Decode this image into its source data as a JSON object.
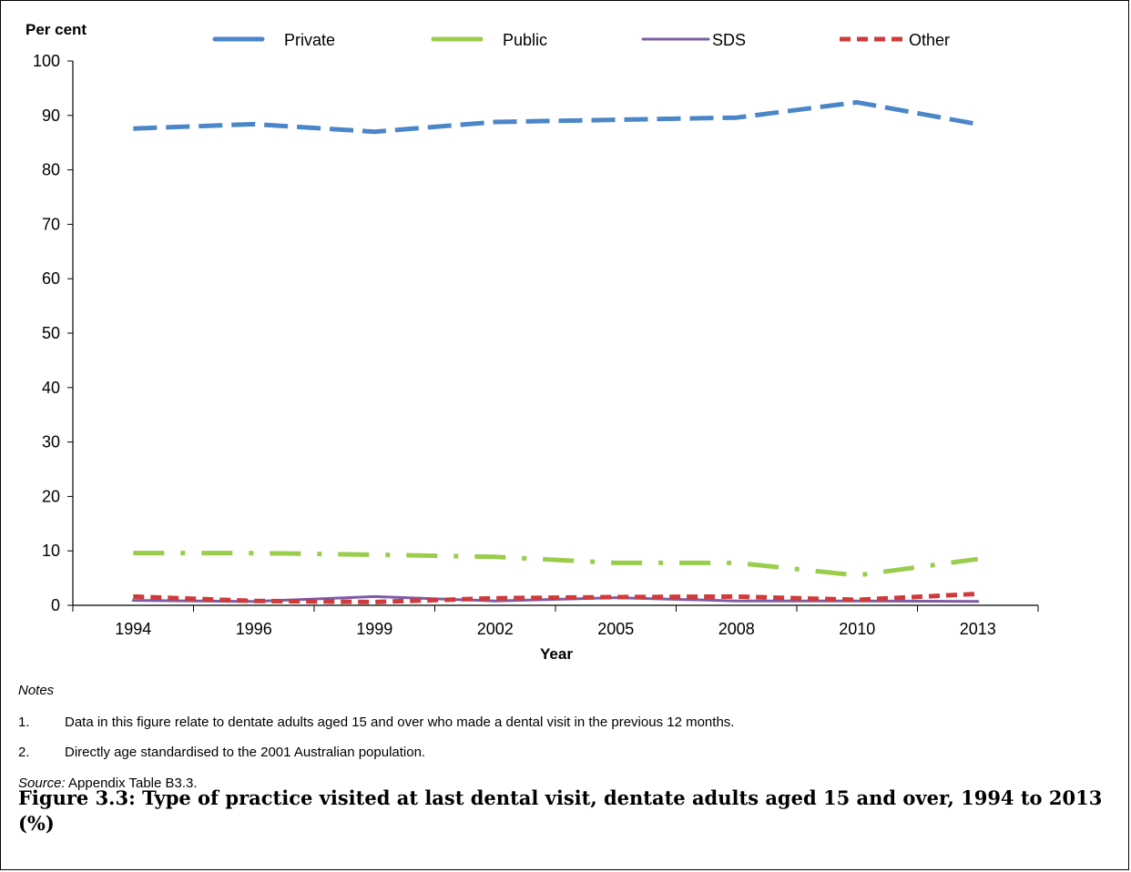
{
  "chart_data": {
    "type": "line",
    "ylabel": "Per cent",
    "xlabel": "Year",
    "categories": [
      "1994",
      "1996",
      "1999",
      "2002",
      "2005",
      "2008",
      "2010",
      "2013"
    ],
    "ylim": [
      0,
      100
    ],
    "yticks": [
      0,
      10,
      20,
      30,
      40,
      50,
      60,
      70,
      80,
      90,
      100
    ],
    "legend_position": "top",
    "grid": false,
    "series": [
      {
        "name": "Private",
        "color": "#4a86c8",
        "style": "long-dash",
        "values": [
          87.6,
          88.4,
          87.0,
          88.8,
          89.2,
          89.6,
          92.4,
          88.4
        ]
      },
      {
        "name": "Public",
        "color": "#9acd4b",
        "style": "dash-dot",
        "values": [
          9.6,
          9.6,
          9.3,
          8.9,
          7.8,
          7.8,
          5.5,
          8.5
        ]
      },
      {
        "name": "SDS",
        "color": "#7d5ca6",
        "style": "solid",
        "values": [
          0.9,
          0.7,
          1.6,
          0.8,
          1.4,
          0.8,
          0.8,
          0.7
        ]
      },
      {
        "name": "Other",
        "color": "#d03a3a",
        "style": "short-dash",
        "values": [
          1.6,
          0.8,
          0.6,
          1.3,
          1.5,
          1.6,
          1.0,
          2.1
        ]
      }
    ]
  },
  "notes": {
    "heading": "Notes",
    "items": [
      {
        "num": "1.",
        "text": "Data in this figure relate to dentate adults aged 15 and over who made a dental visit in the previous 12 months."
      },
      {
        "num": "2.",
        "text": "Directly age standardised to the 2001 Australian population."
      }
    ],
    "source_label": "Source:",
    "source_text": " Appendix Table B3.3."
  },
  "caption": "Figure 3.3: Type of practice visited at last dental visit, dentate adults aged 15 and over, 1994 to 2013 (%)"
}
